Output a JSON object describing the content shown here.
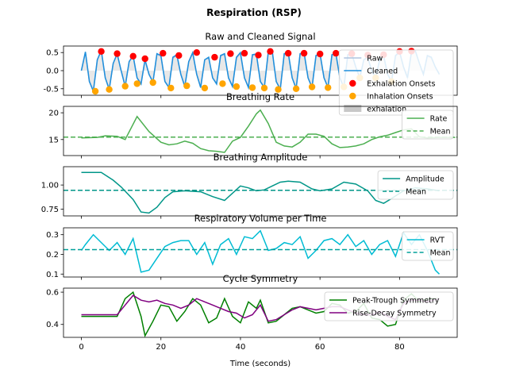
{
  "figure": {
    "suptitle": "Respiration (RSP)",
    "xlabel": "Time (seconds)",
    "xlim": [
      -4.5,
      94.5
    ],
    "xticks": [
      0,
      20,
      40,
      60,
      80
    ]
  },
  "chart_data": [
    {
      "type": "line",
      "title": "Raw and Cleaned Signal",
      "ylim": [
        -0.68,
        0.68
      ],
      "yticks": [
        "0.5",
        "0.0",
        "-0.5"
      ],
      "ytick_values": [
        0.5,
        0.0,
        -0.5
      ],
      "legend_position": "right",
      "series": [
        {
          "name": "Raw",
          "color": "#b0c4de",
          "x": [
            0,
            1,
            2,
            3,
            4,
            5,
            6,
            7,
            8,
            9,
            10,
            11,
            12,
            13,
            14,
            15,
            16,
            17,
            18,
            19,
            20,
            21,
            22,
            23,
            24,
            25,
            26,
            27,
            28,
            29,
            30,
            31,
            32,
            33,
            34,
            35,
            36,
            37,
            38,
            39,
            40,
            41,
            42,
            43,
            44,
            45,
            46,
            47,
            48,
            49,
            50,
            51,
            52,
            53,
            54,
            55,
            56,
            57,
            58,
            59,
            60,
            61,
            62,
            63,
            64,
            65,
            66,
            67,
            68,
            69,
            70,
            71,
            72,
            73,
            74,
            75,
            76,
            77,
            78,
            79,
            80,
            81,
            82,
            83,
            84,
            85,
            86,
            87,
            88,
            89,
            90
          ],
          "values": [
            0,
            0.5,
            -0.3,
            -0.55,
            0.3,
            0.55,
            -0.2,
            -0.5,
            0.2,
            0.45,
            0,
            -0.42,
            0.25,
            0.4,
            -0.2,
            -0.35,
            0.3,
            -0.1,
            -0.3,
            0.45,
            0.4,
            -0.3,
            -0.45,
            0.35,
            0.42,
            -0.1,
            -0.42,
            0.25,
            0.48,
            -0.1,
            -0.45,
            0.3,
            0.35,
            -0.2,
            -0.35,
            0.4,
            0.45,
            -0.2,
            -0.42,
            0.35,
            0.48,
            -0.2,
            -0.45,
            0.42,
            0.44,
            -0.3,
            -0.45,
            0.5,
            0.52,
            -0.3,
            -0.5,
            0.45,
            0.48,
            -0.2,
            -0.48,
            0.45,
            0.48,
            -0.2,
            -0.45,
            0.4,
            0.45,
            -0.2,
            -0.45,
            0.42,
            0.45,
            -0.2,
            -0.45,
            0.42,
            0.45,
            0.1,
            -0.2,
            0.3,
            0.35,
            0,
            -0.2,
            0.3,
            0.4,
            -0.1,
            -0.3,
            0.4,
            0.5,
            0.1,
            -0.2,
            0.5,
            0.52,
            0.2,
            -0.1,
            0.4,
            0.35,
            0.1,
            -0.1
          ]
        },
        {
          "name": "Cleaned",
          "color": "#1f8fdc",
          "x": [
            0,
            1,
            2,
            3,
            4,
            5,
            6,
            7,
            8,
            9,
            10,
            11,
            12,
            13,
            14,
            15,
            16,
            17,
            18,
            19,
            20,
            21,
            22,
            23,
            24,
            25,
            26,
            27,
            28,
            29,
            30,
            31,
            32,
            33,
            34,
            35,
            36,
            37,
            38,
            39,
            40,
            41,
            42,
            43,
            44,
            45,
            46,
            47,
            48,
            49,
            50,
            51,
            52,
            53,
            54,
            55,
            56,
            57,
            58,
            59,
            60,
            61,
            62,
            63,
            64,
            65,
            66,
            67,
            68,
            69,
            70,
            71,
            72,
            73,
            74,
            75,
            76,
            77,
            78,
            79,
            80,
            81,
            82,
            83,
            84,
            85,
            86,
            87,
            88,
            89,
            90
          ],
          "values": [
            0,
            0.52,
            -0.3,
            -0.57,
            0.3,
            0.56,
            -0.2,
            -0.52,
            0.2,
            0.47,
            0,
            -0.44,
            0.25,
            0.42,
            -0.2,
            -0.37,
            0.3,
            -0.1,
            -0.32,
            0.47,
            0.42,
            -0.3,
            -0.47,
            0.37,
            0.44,
            -0.1,
            -0.44,
            0.25,
            0.5,
            -0.1,
            -0.47,
            0.3,
            0.37,
            -0.2,
            -0.37,
            0.42,
            0.47,
            -0.2,
            -0.44,
            0.37,
            0.5,
            -0.2,
            -0.47,
            0.44,
            0.46,
            -0.3,
            -0.47,
            0.52,
            0.54,
            -0.3,
            -0.52,
            0.47,
            0.5,
            -0.2,
            -0.5,
            0.47,
            0.5,
            -0.2,
            -0.47,
            0.42,
            0.47,
            -0.2,
            -0.47,
            0.44,
            0.47,
            -0.2,
            -0.47,
            0.44,
            0.47,
            0.1,
            -0.2,
            0.3,
            0.37,
            0,
            -0.2,
            0.3,
            0.42,
            -0.1,
            -0.3,
            0.42,
            0.52,
            0.1,
            -0.2,
            0.52,
            0.54,
            0.2,
            -0.1,
            0.42,
            0.37,
            0.1,
            -0.1
          ]
        }
      ],
      "markers": [
        {
          "name": "Exhalation Onsets",
          "color": "#ff0000",
          "x": [
            5,
            9,
            13,
            16,
            20.5,
            24.5,
            29,
            33.5,
            37.5,
            41,
            44.5,
            47.5,
            52,
            56,
            60,
            64,
            68,
            72,
            76,
            80,
            83
          ],
          "values": [
            0.53,
            0.47,
            0.4,
            0.33,
            0.48,
            0.42,
            0.5,
            0.37,
            0.47,
            0.48,
            0.43,
            0.53,
            0.48,
            0.48,
            0.46,
            0.48,
            0.47,
            0.43,
            0.44,
            0.53,
            0.54
          ]
        },
        {
          "name": "Inhalation Onsets",
          "color": "#ffa500",
          "x": [
            3.5,
            7,
            11,
            14,
            18,
            22.5,
            26.5,
            31,
            35.5,
            39,
            43,
            46,
            49.5,
            54,
            58,
            62,
            66,
            70,
            74,
            78
          ],
          "values": [
            -0.57,
            -0.52,
            -0.43,
            -0.36,
            -0.33,
            -0.48,
            -0.42,
            -0.48,
            -0.36,
            -0.44,
            -0.47,
            -0.48,
            -0.52,
            -0.5,
            -0.45,
            -0.47,
            -0.45,
            -0.2,
            -0.2,
            -0.3
          ]
        }
      ],
      "legend_entries": [
        "Raw",
        "Cleaned",
        "Exhalation Onsets",
        "Inhalation Onsets",
        "exhalation"
      ]
    },
    {
      "type": "line",
      "title": "Breathing Rate",
      "ylim": [
        12.0,
        21.2
      ],
      "yticks": [
        "20",
        "15"
      ],
      "ytick_values": [
        20,
        15
      ],
      "series": [
        {
          "name": "Rate",
          "color": "#4caf50",
          "x": [
            0,
            4,
            6,
            9,
            11,
            14,
            17,
            20,
            22,
            24,
            26,
            28,
            30,
            32,
            34,
            36,
            38,
            40,
            42,
            44,
            45,
            47,
            49,
            51,
            53,
            55,
            57,
            59,
            61,
            63,
            65,
            67,
            69,
            71,
            73,
            75,
            77,
            79,
            81,
            83,
            85,
            87,
            90,
            94
          ],
          "values": [
            15.3,
            15.4,
            15.7,
            15.6,
            15.0,
            19.3,
            16.5,
            14.5,
            14.0,
            14.2,
            14.7,
            14.3,
            13.3,
            12.9,
            12.8,
            12.6,
            14.7,
            15.4,
            17.5,
            19.8,
            20.5,
            18.0,
            14.5,
            13.8,
            13.6,
            14.5,
            16.0,
            16.0,
            15.6,
            14.2,
            13.5,
            13.6,
            13.8,
            14.2,
            15.0,
            15.5,
            15.8,
            16.3,
            16.8,
            17.0,
            15.5,
            15.3,
            15.4,
            15.4
          ]
        },
        {
          "name": "Mean",
          "color": "#4caf50",
          "dashed": true,
          "x": [
            -4.5,
            94.5
          ],
          "values": [
            15.45,
            15.45
          ]
        }
      ]
    },
    {
      "type": "line",
      "title": "Breathing Amplitude",
      "ylim": [
        0.68,
        1.19
      ],
      "yticks": [
        "1.00",
        "0.75"
      ],
      "ytick_values": [
        1.0,
        0.75
      ],
      "series": [
        {
          "name": "Amplitude",
          "color": "#009688",
          "x": [
            0,
            2,
            5,
            8,
            10,
            13,
            15,
            17,
            19,
            21,
            23,
            26,
            30,
            33,
            36,
            40,
            42,
            44,
            46,
            48,
            50,
            52,
            55,
            58,
            60,
            63,
            66,
            69,
            72,
            74,
            76,
            78,
            81,
            84,
            87,
            90
          ],
          "values": [
            1.13,
            1.13,
            1.13,
            1.05,
            0.98,
            0.85,
            0.72,
            0.71,
            0.77,
            0.87,
            0.93,
            0.94,
            0.93,
            0.88,
            0.84,
            0.99,
            0.97,
            0.94,
            0.95,
            0.99,
            1.03,
            1.04,
            1.03,
            0.96,
            0.94,
            0.96,
            1.03,
            1.01,
            0.94,
            0.84,
            0.81,
            0.86,
            0.94,
            0.97,
            0.96,
            0.94
          ]
        },
        {
          "name": "Mean",
          "color": "#009688",
          "dashed": true,
          "x": [
            -4.5,
            94.5
          ],
          "values": [
            0.945,
            0.945
          ]
        }
      ]
    },
    {
      "type": "line",
      "title": "Respiratory Volume per Time",
      "ylim": [
        0.085,
        0.335
      ],
      "yticks": [
        "0.3",
        "0.2",
        "0.1"
      ],
      "ytick_values": [
        0.3,
        0.2,
        0.1
      ],
      "series": [
        {
          "name": "RVT",
          "color": "#00bcd4",
          "x": [
            0,
            1,
            3,
            5,
            7,
            9,
            11,
            13,
            15,
            17,
            19,
            21,
            23,
            25,
            27,
            29,
            31,
            33,
            35,
            37,
            39,
            41,
            43,
            45,
            47,
            49,
            51,
            53,
            55,
            57,
            59,
            61,
            63,
            65,
            67,
            69,
            71,
            73,
            75,
            77,
            79,
            81,
            83,
            85,
            87,
            89,
            90
          ],
          "values": [
            0.22,
            0.25,
            0.3,
            0.26,
            0.22,
            0.26,
            0.2,
            0.28,
            0.11,
            0.12,
            0.18,
            0.24,
            0.26,
            0.27,
            0.27,
            0.2,
            0.26,
            0.15,
            0.25,
            0.28,
            0.2,
            0.29,
            0.28,
            0.32,
            0.22,
            0.23,
            0.26,
            0.25,
            0.29,
            0.18,
            0.22,
            0.27,
            0.28,
            0.25,
            0.3,
            0.24,
            0.27,
            0.2,
            0.25,
            0.27,
            0.19,
            0.31,
            0.25,
            0.3,
            0.22,
            0.12,
            0.1
          ]
        },
        {
          "name": "Mean",
          "color": "#00a09a",
          "dashed": true,
          "x": [
            -4.5,
            94.5
          ],
          "values": [
            0.224,
            0.224
          ]
        }
      ]
    },
    {
      "type": "line",
      "title": "Cycle Symmetry",
      "ylim": [
        0.32,
        0.625
      ],
      "yticks": [
        "0.6",
        "0.4"
      ],
      "ytick_values": [
        0.6,
        0.4
      ],
      "series": [
        {
          "name": "Peak-Trough Symmetry",
          "color": "#008000",
          "x": [
            0,
            3,
            6,
            9,
            11,
            13,
            15,
            16,
            18,
            20,
            22,
            24,
            26,
            28,
            30,
            32,
            34,
            36,
            38,
            40,
            42,
            44,
            45,
            47,
            49,
            51,
            53,
            55,
            57,
            59,
            61,
            63,
            65,
            67,
            69,
            71,
            73,
            75,
            77,
            79,
            81,
            83,
            85,
            87,
            90
          ],
          "values": [
            0.45,
            0.45,
            0.45,
            0.45,
            0.56,
            0.6,
            0.45,
            0.33,
            0.42,
            0.52,
            0.51,
            0.42,
            0.48,
            0.56,
            0.52,
            0.41,
            0.44,
            0.56,
            0.45,
            0.41,
            0.54,
            0.5,
            0.55,
            0.41,
            0.42,
            0.46,
            0.5,
            0.51,
            0.49,
            0.47,
            0.48,
            0.53,
            0.52,
            0.47,
            0.48,
            0.53,
            0.44,
            0.43,
            0.39,
            0.4,
            0.55,
            0.59,
            0.54,
            0.56,
            0.56
          ]
        },
        {
          "name": "Rise-Decay Symmetry",
          "color": "#800080",
          "x": [
            0,
            3,
            6,
            9,
            11,
            13,
            15,
            17,
            19,
            21,
            23,
            25,
            27,
            29,
            31,
            33,
            35,
            37,
            39,
            41,
            43,
            45,
            47,
            49,
            51,
            53,
            55,
            57,
            59,
            61,
            63,
            65,
            67,
            69,
            71,
            73,
            75,
            77,
            79,
            81,
            83,
            85,
            87,
            90
          ],
          "values": [
            0.46,
            0.46,
            0.46,
            0.46,
            0.52,
            0.58,
            0.55,
            0.54,
            0.55,
            0.53,
            0.52,
            0.5,
            0.52,
            0.56,
            0.54,
            0.52,
            0.5,
            0.48,
            0.47,
            0.44,
            0.46,
            0.52,
            0.42,
            0.43,
            0.46,
            0.49,
            0.51,
            0.5,
            0.49,
            0.5,
            0.51,
            0.51,
            0.49,
            0.47,
            0.46,
            0.46,
            0.48,
            0.45,
            0.43,
            0.53,
            0.55,
            0.55,
            0.54,
            0.56
          ]
        }
      ]
    }
  ]
}
